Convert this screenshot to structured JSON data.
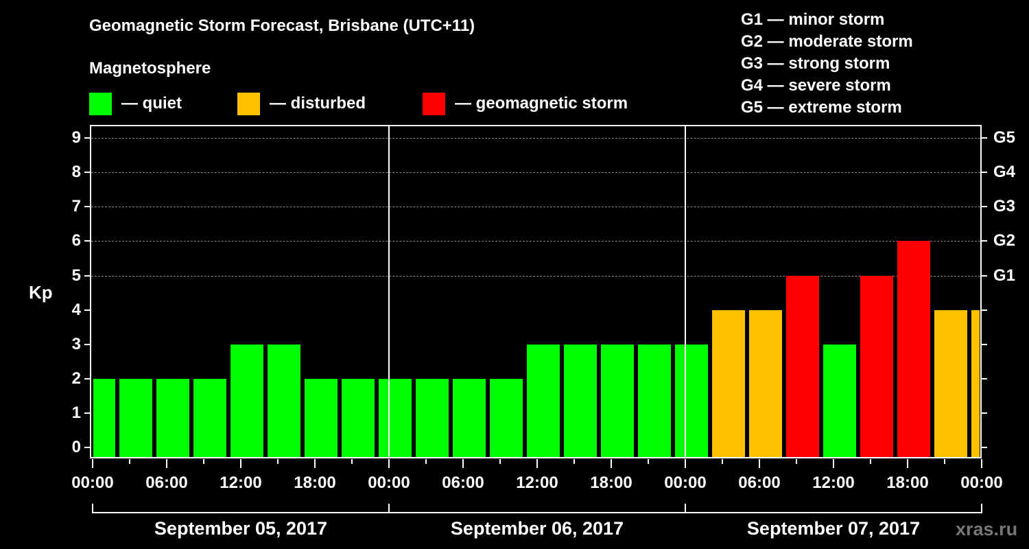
{
  "title": "Geomagnetic Storm Forecast, Brisbane (UTC+11)",
  "subtitle": "Magnetosphere",
  "legend": [
    {
      "label": "— quiet",
      "color": "#00ff00"
    },
    {
      "label": "— disturbed",
      "color": "#ffc000"
    },
    {
      "label": "— geomagnetic storm",
      "color": "#ff0000"
    }
  ],
  "g_scale": [
    "G1 — minor storm",
    "G2 — moderate storm",
    "G3 — strong storm",
    "G4 — severe storm",
    "G5 — extreme storm"
  ],
  "y_axis_label": "Kp",
  "y_ticks": [
    "0",
    "1",
    "2",
    "3",
    "4",
    "5",
    "6",
    "7",
    "8",
    "9"
  ],
  "g_ticks": [
    {
      "label": "G1",
      "kp": 5
    },
    {
      "label": "G2",
      "kp": 6
    },
    {
      "label": "G3",
      "kp": 7
    },
    {
      "label": "G4",
      "kp": 8
    },
    {
      "label": "G5",
      "kp": 9
    }
  ],
  "x_ticks": [
    "00:00",
    "06:00",
    "12:00",
    "18:00",
    "00:00",
    "06:00",
    "12:00",
    "18:00",
    "00:00",
    "06:00",
    "12:00",
    "18:00",
    "00:00"
  ],
  "dates": [
    "September 05, 2017",
    "September 06, 2017",
    "September 07, 2017"
  ],
  "watermark": "xras.ru",
  "colors": {
    "quiet": "#00ff00",
    "disturbed": "#ffc000",
    "storm": "#ff0000",
    "grid": "#888888"
  },
  "chart_data": {
    "type": "bar",
    "title": "Geomagnetic Storm Forecast, Brisbane (UTC+11)",
    "xlabel": "",
    "ylabel": "Kp",
    "ylim": [
      0,
      9
    ],
    "grid": "dashed horizontal at Kp 5-9",
    "legend_position": "top",
    "bin_hours": 3,
    "bin_offset_local": "02:00 (UTC 3-hour bins shifted by UTC+11)",
    "categories": [
      "Sep 05 00:00-02:00",
      "Sep 05 02:00-05:00",
      "Sep 05 05:00-08:00",
      "Sep 05 08:00-11:00",
      "Sep 05 11:00-14:00",
      "Sep 05 14:00-17:00",
      "Sep 05 17:00-20:00",
      "Sep 05 20:00-23:00",
      "Sep 05 23:00-02:00",
      "Sep 06 02:00-05:00",
      "Sep 06 05:00-08:00",
      "Sep 06 08:00-11:00",
      "Sep 06 11:00-14:00",
      "Sep 06 14:00-17:00",
      "Sep 06 17:00-20:00",
      "Sep 06 20:00-23:00",
      "Sep 06 23:00-02:00",
      "Sep 07 02:00-05:00",
      "Sep 07 05:00-08:00",
      "Sep 07 08:00-11:00",
      "Sep 07 11:00-14:00",
      "Sep 07 14:00-17:00",
      "Sep 07 17:00-20:00",
      "Sep 07 20:00-23:00",
      "Sep 07 23:00-00:00"
    ],
    "values": [
      2,
      2,
      2,
      2,
      3,
      3,
      2,
      2,
      2,
      2,
      2,
      2,
      3,
      3,
      3,
      3,
      3,
      4,
      4,
      5,
      3,
      5,
      6,
      4,
      4
    ],
    "status": [
      "quiet",
      "quiet",
      "quiet",
      "quiet",
      "quiet",
      "quiet",
      "quiet",
      "quiet",
      "quiet",
      "quiet",
      "quiet",
      "quiet",
      "quiet",
      "quiet",
      "quiet",
      "quiet",
      "quiet",
      "disturbed",
      "disturbed",
      "storm",
      "quiet",
      "storm",
      "storm",
      "disturbed",
      "disturbed"
    ],
    "right_axis": {
      "G1": 5,
      "G2": 6,
      "G3": 7,
      "G4": 8,
      "G5": 9
    }
  }
}
